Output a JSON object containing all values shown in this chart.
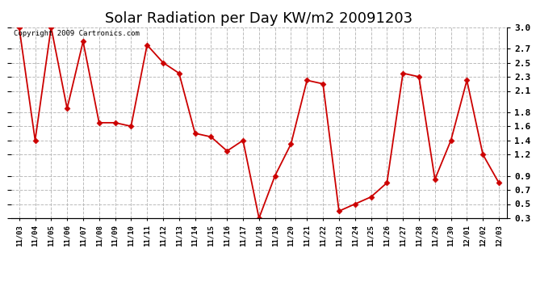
{
  "title": "Solar Radiation per Day KW/m2 20091203",
  "copyright": "Copyright 2009 Cartronics.com",
  "dates": [
    "11/03",
    "11/04",
    "11/05",
    "11/06",
    "11/07",
    "11/08",
    "11/09",
    "11/10",
    "11/11",
    "11/12",
    "11/13",
    "11/14",
    "11/15",
    "11/16",
    "11/17",
    "11/18",
    "11/19",
    "11/20",
    "11/21",
    "11/22",
    "11/23",
    "11/24",
    "11/25",
    "11/26",
    "11/27",
    "11/28",
    "11/29",
    "11/30",
    "12/01",
    "12/02",
    "12/03"
  ],
  "values": [
    3.0,
    1.4,
    3.0,
    1.85,
    2.8,
    1.65,
    1.65,
    1.6,
    2.75,
    2.5,
    2.35,
    1.5,
    1.45,
    1.25,
    1.4,
    0.3,
    0.9,
    1.35,
    2.25,
    2.2,
    0.4,
    0.5,
    0.6,
    0.8,
    2.35,
    2.3,
    0.85,
    1.4,
    2.25,
    1.2,
    0.8
  ],
  "line_color": "#cc0000",
  "marker": "D",
  "marker_size": 3,
  "ylim": [
    0.3,
    3.0
  ],
  "yticks": [
    0.3,
    0.5,
    0.7,
    0.9,
    1.2,
    1.4,
    1.6,
    1.8,
    2.1,
    2.3,
    2.5,
    2.7,
    3.0
  ],
  "background_color": "#ffffff",
  "grid_color": "#bbbbbb",
  "title_fontsize": 13,
  "copyright_fontsize": 6.5
}
